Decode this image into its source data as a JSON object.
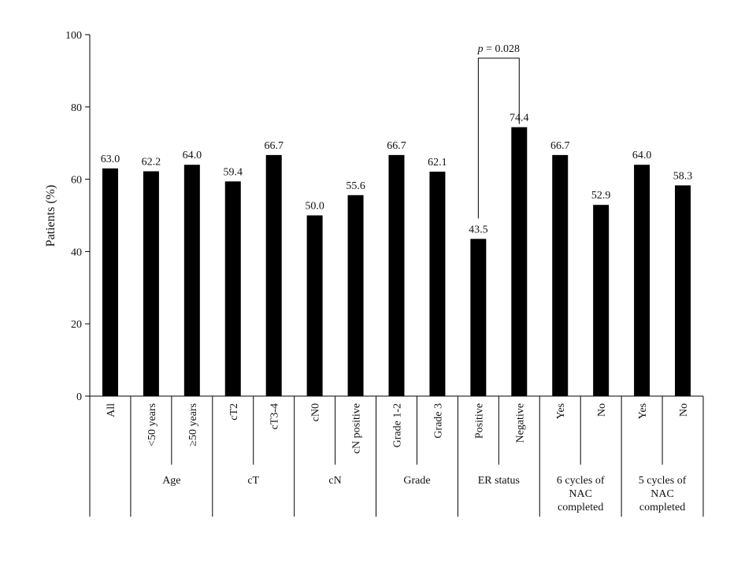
{
  "chart_data": {
    "type": "bar",
    "ylabel": "Patients (%)",
    "xlabel": "",
    "ylim": [
      0,
      100
    ],
    "yticks": [
      0,
      20,
      40,
      60,
      80,
      100
    ],
    "grid": false,
    "categories": [
      "All",
      "<50 years",
      "≥50 years",
      "cT2",
      "cT3-4",
      "cN0",
      "cN positive",
      "Grade 1-2",
      "Grade 3",
      "Positive",
      "Negative",
      "Yes",
      "No",
      "Yes",
      "No"
    ],
    "values": [
      63.0,
      62.2,
      64.0,
      59.4,
      66.7,
      50.0,
      55.6,
      66.7,
      62.1,
      43.5,
      74.4,
      66.7,
      52.9,
      64.0,
      58.3
    ],
    "value_labels": [
      "63.0",
      "62.2",
      "64.0",
      "59.4",
      "66.7",
      "50.0",
      "55.6",
      "66.7",
      "62.1",
      "43.5",
      "74.4",
      "66.7",
      "52.9",
      "64.0",
      "58.3"
    ],
    "groups": [
      {
        "label": "",
        "start": 0,
        "end": 0
      },
      {
        "label": "Age",
        "start": 1,
        "end": 2
      },
      {
        "label": "cT",
        "start": 3,
        "end": 4
      },
      {
        "label": "cN",
        "start": 5,
        "end": 6
      },
      {
        "label": "Grade",
        "start": 7,
        "end": 8
      },
      {
        "label": "ER status",
        "start": 9,
        "end": 10
      },
      {
        "label": "6 cycles of\nNAC\ncompleted",
        "start": 11,
        "end": 12
      },
      {
        "label": "5 cycles of\nNAC\ncompleted",
        "start": 13,
        "end": 14
      }
    ],
    "annotation": {
      "p_symbol": "p",
      "text": " = 0.028",
      "between": [
        9,
        10
      ],
      "y": 93.5
    },
    "colors": {
      "bar": "#000000",
      "axis": "#000000"
    }
  }
}
